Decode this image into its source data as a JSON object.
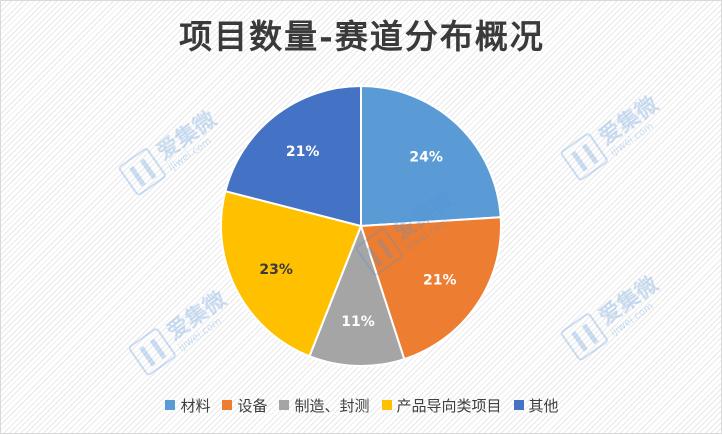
{
  "chart_data": {
    "type": "pie",
    "title": "项目数量-赛道分布概况",
    "categories": [
      "材料",
      "设备",
      "制造、封测",
      "产品导向类项目",
      "其他"
    ],
    "values": [
      24,
      21,
      11,
      23,
      21
    ],
    "value_format": "percent",
    "colors": [
      "#5b9bd5",
      "#ed7d31",
      "#a5a5a5",
      "#ffc000",
      "#4472c4"
    ],
    "legend_position": "bottom"
  },
  "watermark": {
    "text": "爱集微",
    "subtext": "ijiwei.com"
  }
}
